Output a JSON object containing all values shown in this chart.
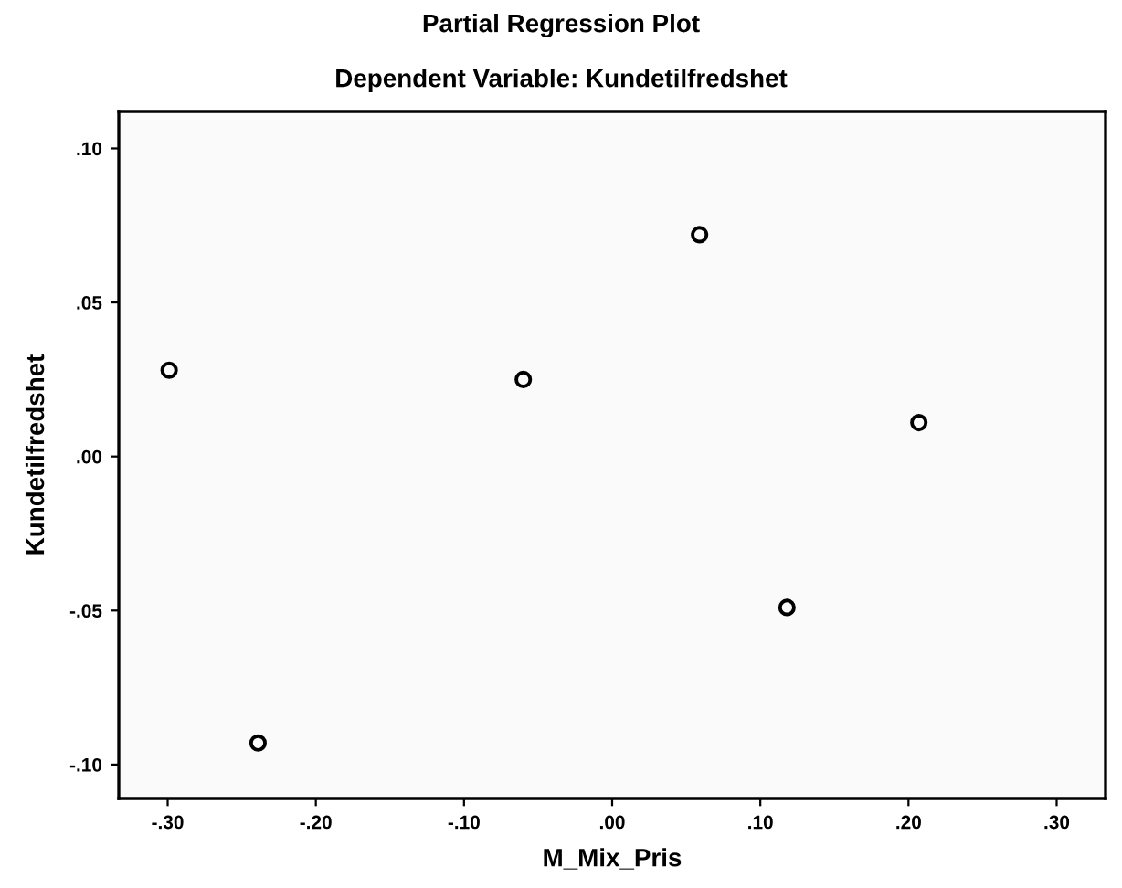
{
  "chart_data": {
    "type": "scatter",
    "title": "Partial Regression Plot",
    "subtitle": "Dependent Variable: Kundetilfredshet",
    "xlabel": "M_Mix_Pris",
    "ylabel": "Kundetilfredshet",
    "x": [
      -0.299,
      -0.239,
      -0.06,
      0.059,
      0.118,
      0.207
    ],
    "values": [
      0.028,
      -0.093,
      0.025,
      0.072,
      -0.049,
      0.011
    ],
    "color": "#000000",
    "marker": "circle",
    "xlim": [
      -0.333,
      0.333
    ],
    "ylim": [
      -0.111,
      0.112
    ],
    "xticks": [
      {
        "value": -0.3,
        "label": "-.30"
      },
      {
        "value": -0.2,
        "label": "-.20"
      },
      {
        "value": -0.1,
        "label": "-.10"
      },
      {
        "value": 0,
        "label": ".00"
      },
      {
        "value": 0.1,
        "label": ".10"
      },
      {
        "value": 0.2,
        "label": ".20"
      },
      {
        "value": 0.3,
        "label": ".30"
      }
    ],
    "yticks": [
      {
        "value": -0.1,
        "label": "-.10"
      },
      {
        "value": -0.05,
        "label": "-.05"
      },
      {
        "value": 0,
        "label": ".00"
      },
      {
        "value": 0.05,
        "label": ".05"
      },
      {
        "value": 0.1,
        "label": ".10"
      }
    ],
    "grid": false
  }
}
